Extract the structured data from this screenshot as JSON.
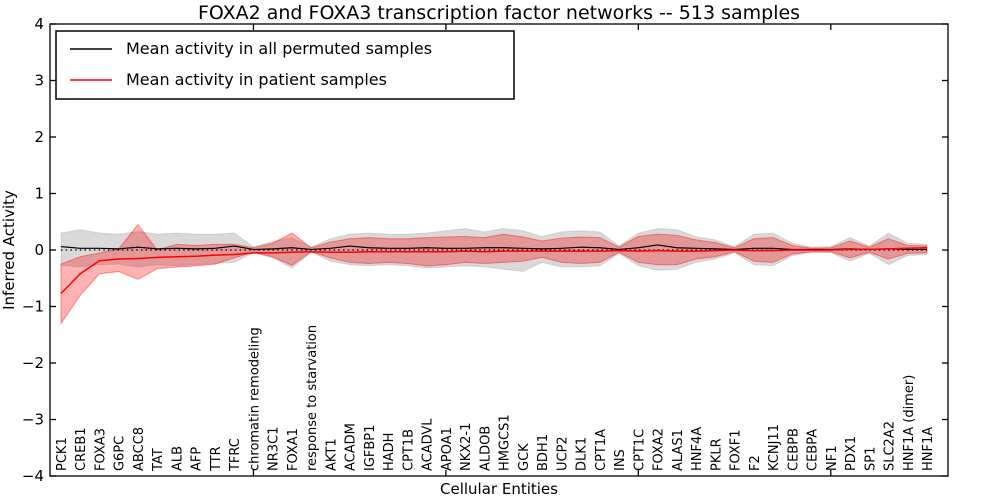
{
  "chart_data": {
    "type": "line",
    "title": "FOXA2 and FOXA3 transcription factor networks -- 513 samples",
    "xlabel": "Cellular Entities",
    "ylabel": "Inferred Activity",
    "ylim": [
      -4,
      4
    ],
    "yticks": [
      4,
      3,
      2,
      1,
      0,
      -1,
      -2,
      -3,
      -4
    ],
    "grid": false,
    "legend_position": "upper left",
    "categories": [
      "PCK1",
      "CREB1",
      "FOXA3",
      "G6PC",
      "ABCC8",
      "TAT",
      "ALB",
      "AFP",
      "TTR",
      "TFRC",
      "chromatin remodeling",
      "NR3C1",
      "FOXA1",
      "response to starvation",
      "AKT1",
      "ACADM",
      "IGFBP1",
      "HADH",
      "CPT1B",
      "ACADVL",
      "APOA1",
      "NKX2-1",
      "ALDOB",
      "HMGCS1",
      "GCK",
      "BDH1",
      "UCP2",
      "DLK1",
      "CPT1A",
      "INS",
      "CPT1C",
      "FOXA2",
      "ALAS1",
      "HNF4A",
      "PKLR",
      "FOXF1",
      "F2",
      "KCNJ11",
      "CEBPB",
      "CEBPA",
      "NF1",
      "PDX1",
      "SP1",
      "SLC2A2",
      "HNF1A (dimer)",
      "HNF1A"
    ],
    "reference_line": {
      "y": 0,
      "style": "dotted",
      "color": "#000000"
    },
    "series": [
      {
        "name": "Mean activity in all permuted samples",
        "color": "#000000",
        "band_fill": "rgba(0,0,0,0.15)",
        "band_edge": "rgba(0,0,0,0.10)",
        "line_width": 1.2,
        "values": [
          0.06,
          0.03,
          0.03,
          0.02,
          0.05,
          0.02,
          0.03,
          0.02,
          0.03,
          0.07,
          0.01,
          0.02,
          0.04,
          0.01,
          0.03,
          0.07,
          0.04,
          0.03,
          0.03,
          0.04,
          0.03,
          0.03,
          0.04,
          0.04,
          0.03,
          0.02,
          0.03,
          0.05,
          0.04,
          0.01,
          0.04,
          0.09,
          0.04,
          0.03,
          0.02,
          0.01,
          0.03,
          0.03,
          0.01,
          0.01,
          0.01,
          0.02,
          0.01,
          0.02,
          0.01,
          0.01
        ],
        "band_upper": [
          0.3,
          0.36,
          0.3,
          0.28,
          0.33,
          0.28,
          0.3,
          0.28,
          0.28,
          0.3,
          0.06,
          0.15,
          0.22,
          0.05,
          0.2,
          0.28,
          0.3,
          0.28,
          0.28,
          0.3,
          0.34,
          0.38,
          0.32,
          0.38,
          0.34,
          0.24,
          0.32,
          0.34,
          0.32,
          0.07,
          0.3,
          0.38,
          0.36,
          0.24,
          0.18,
          0.06,
          0.28,
          0.3,
          0.12,
          0.05,
          0.06,
          0.22,
          0.07,
          0.3,
          0.12,
          0.1
        ],
        "band_lower": [
          -0.27,
          -0.3,
          -0.26,
          -0.25,
          -0.3,
          -0.26,
          -0.28,
          -0.26,
          -0.24,
          -0.22,
          -0.05,
          -0.14,
          -0.32,
          -0.04,
          -0.2,
          -0.26,
          -0.28,
          -0.26,
          -0.28,
          -0.32,
          -0.3,
          -0.28,
          -0.3,
          -0.34,
          -0.38,
          -0.22,
          -0.3,
          -0.3,
          -0.28,
          -0.06,
          -0.28,
          -0.36,
          -0.34,
          -0.22,
          -0.16,
          -0.05,
          -0.26,
          -0.28,
          -0.1,
          -0.04,
          -0.05,
          -0.2,
          -0.06,
          -0.26,
          -0.1,
          -0.08
        ]
      },
      {
        "name": "Mean activity in patient samples",
        "color": "#ff0000",
        "band_fill": "rgba(255,0,0,0.30)",
        "band_edge": "rgba(255,0,0,0.40)",
        "line_width": 1.5,
        "values": [
          -0.77,
          -0.42,
          -0.19,
          -0.16,
          -0.15,
          -0.13,
          -0.12,
          -0.11,
          -0.09,
          -0.08,
          -0.05,
          -0.05,
          -0.04,
          -0.03,
          -0.04,
          -0.04,
          -0.03,
          -0.03,
          -0.03,
          -0.03,
          -0.03,
          -0.02,
          -0.03,
          -0.02,
          -0.02,
          -0.02,
          -0.02,
          -0.02,
          -0.02,
          -0.01,
          -0.02,
          -0.01,
          -0.02,
          -0.02,
          -0.01,
          0.0,
          -0.01,
          -0.01,
          0.0,
          0.0,
          0.0,
          0.01,
          0.01,
          0.02,
          0.03,
          0.04
        ],
        "band_upper": [
          -0.25,
          -0.12,
          -0.05,
          0.02,
          0.45,
          0.0,
          0.1,
          0.08,
          0.1,
          0.1,
          0.04,
          0.12,
          0.3,
          0.04,
          0.14,
          0.2,
          0.22,
          0.2,
          0.2,
          0.22,
          0.23,
          0.24,
          0.22,
          0.28,
          0.23,
          0.16,
          0.21,
          0.23,
          0.22,
          0.05,
          0.24,
          0.28,
          0.26,
          0.18,
          0.13,
          0.04,
          0.2,
          0.22,
          0.08,
          0.03,
          0.04,
          0.16,
          0.05,
          0.2,
          0.08,
          0.07
        ],
        "band_lower": [
          -1.3,
          -0.8,
          -0.42,
          -0.38,
          -0.52,
          -0.33,
          -0.3,
          -0.28,
          -0.25,
          -0.14,
          -0.04,
          -0.12,
          -0.27,
          -0.03,
          -0.14,
          -0.22,
          -0.24,
          -0.22,
          -0.24,
          -0.28,
          -0.26,
          -0.22,
          -0.24,
          -0.22,
          -0.2,
          -0.13,
          -0.22,
          -0.24,
          -0.22,
          -0.04,
          -0.22,
          -0.26,
          -0.26,
          -0.16,
          -0.12,
          -0.03,
          -0.2,
          -0.22,
          -0.07,
          -0.03,
          -0.03,
          -0.14,
          -0.04,
          -0.16,
          -0.06,
          -0.05
        ]
      }
    ]
  }
}
